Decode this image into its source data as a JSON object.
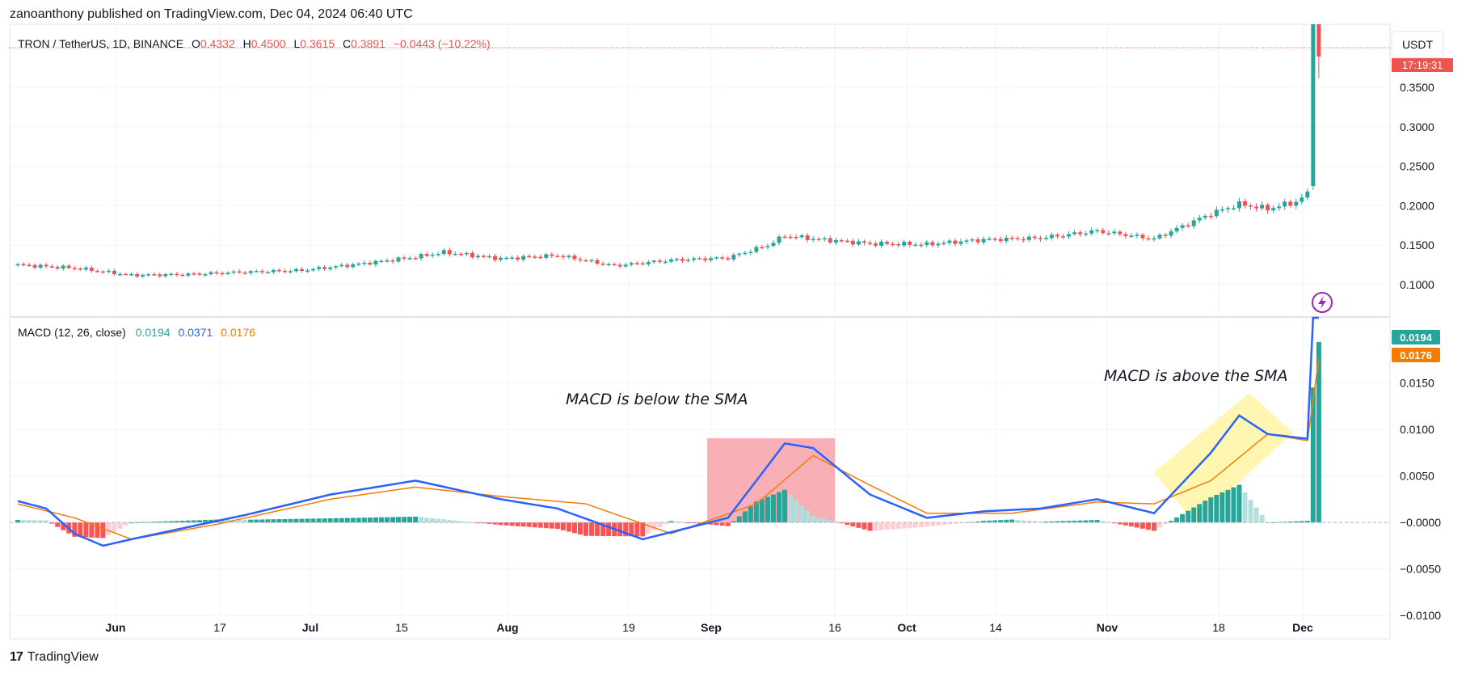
{
  "header": {
    "published": "zanoanthony published on TradingView.com, Dec 04, 2024 06:40 UTC"
  },
  "symbol_legend": {
    "name": "TRON / TetherUS, 1D, BINANCE",
    "o_label": "O",
    "o_value": "0.4332",
    "h_label": "H",
    "h_value": "0.4500",
    "l_label": "L",
    "l_value": "0.3615",
    "c_label": "C",
    "c_value": "0.3891",
    "change": "−0.0443 (−10.22%)"
  },
  "price_axis": {
    "currency": "USDT",
    "countdown": "17:19:31",
    "ticks": [
      "0.3500",
      "0.3000",
      "0.2500",
      "0.2000",
      "0.1500",
      "0.1000"
    ],
    "tick_values": [
      0.35,
      0.3,
      0.25,
      0.2,
      0.15,
      0.1
    ]
  },
  "macd_legend": {
    "name": "MACD (12, 26, close)",
    "hist": "0.0194",
    "macd": "0.0371",
    "signal": "0.0176"
  },
  "macd_axis": {
    "ticks": [
      "0.0150",
      "0.0100",
      "0.0050",
      "−0.0000",
      "−0.0050",
      "−0.0100"
    ],
    "tick_values": [
      0.015,
      0.01,
      0.005,
      0.0,
      -0.005,
      -0.01
    ],
    "hist_badge": "0.0194",
    "signal_badge": "0.0176"
  },
  "time_axis": {
    "labels": [
      "Jun",
      "17",
      "Jul",
      "15",
      "Aug",
      "19",
      "Sep",
      "16",
      "Oct",
      "14",
      "Nov",
      "18",
      "Dec"
    ],
    "bold": [
      "Jun",
      "Jul",
      "Aug",
      "Sep",
      "Oct",
      "Nov",
      "Dec"
    ]
  },
  "annotations": {
    "below": "MACD is below the SMA",
    "above": "MACD is above the SMA"
  },
  "footer": {
    "brand": "TradingView",
    "logo": "17"
  },
  "colors": {
    "up": "#26a69a",
    "down": "#ef5350",
    "macd": "#2962ff",
    "signal": "#f57c00",
    "hist_up_strong": "#26a69a",
    "hist_up_weak": "#b2dfdb",
    "hist_down_strong": "#ff5252",
    "hist_down_weak": "#ffcdd2",
    "highlight_red": "#f7a1a8",
    "highlight_yellow": "#fff59d"
  },
  "chart_data": {
    "type": "candlestick",
    "symbol": "TRXUSDT",
    "interval": "1D",
    "range": [
      "2024-05-19",
      "2024-12-04"
    ],
    "price_ylim": [
      0.06,
      0.43
    ],
    "price_scale": "linear",
    "close_path": [
      [
        0,
        0.125
      ],
      [
        10,
        0.121
      ],
      [
        20,
        0.112
      ],
      [
        30,
        0.113
      ],
      [
        40,
        0.116
      ],
      [
        50,
        0.118
      ],
      [
        60,
        0.126
      ],
      [
        70,
        0.135
      ],
      [
        75,
        0.141
      ],
      [
        85,
        0.133
      ],
      [
        95,
        0.137
      ],
      [
        105,
        0.124
      ],
      [
        115,
        0.131
      ],
      [
        125,
        0.134
      ],
      [
        132,
        0.15
      ],
      [
        135,
        0.162
      ],
      [
        140,
        0.158
      ],
      [
        150,
        0.152
      ],
      [
        160,
        0.151
      ],
      [
        170,
        0.157
      ],
      [
        180,
        0.159
      ],
      [
        190,
        0.168
      ],
      [
        200,
        0.158
      ],
      [
        210,
        0.19
      ],
      [
        215,
        0.202
      ],
      [
        220,
        0.196
      ],
      [
        225,
        0.205
      ],
      [
        228,
        0.22
      ],
      [
        229,
        0.39
      ]
    ],
    "macd_ylim": [
      -0.0125,
      0.022
    ],
    "macd_line": [
      [
        0,
        0.0023
      ],
      [
        5,
        0.0015
      ],
      [
        10,
        -0.0012
      ],
      [
        15,
        -0.0025
      ],
      [
        20,
        -0.0018
      ],
      [
        30,
        -0.0005
      ],
      [
        40,
        0.0008
      ],
      [
        55,
        0.003
      ],
      [
        70,
        0.0045
      ],
      [
        85,
        0.0025
      ],
      [
        95,
        0.0015
      ],
      [
        110,
        -0.0018
      ],
      [
        125,
        0.0005
      ],
      [
        135,
        0.0085
      ],
      [
        140,
        0.008
      ],
      [
        150,
        0.003
      ],
      [
        160,
        0.0005
      ],
      [
        170,
        0.0012
      ],
      [
        180,
        0.0015
      ],
      [
        190,
        0.0025
      ],
      [
        200,
        0.001
      ],
      [
        210,
        0.0075
      ],
      [
        215,
        0.0115
      ],
      [
        220,
        0.0095
      ],
      [
        227,
        0.009
      ],
      [
        229,
        0.0371
      ]
    ],
    "signal_line": [
      [
        0,
        0.002
      ],
      [
        10,
        0.0005
      ],
      [
        20,
        -0.0018
      ],
      [
        35,
        -0.0002
      ],
      [
        55,
        0.0025
      ],
      [
        70,
        0.0038
      ],
      [
        85,
        0.0028
      ],
      [
        100,
        0.002
      ],
      [
        115,
        -0.0012
      ],
      [
        130,
        0.002
      ],
      [
        140,
        0.0072
      ],
      [
        150,
        0.004
      ],
      [
        160,
        0.001
      ],
      [
        175,
        0.001
      ],
      [
        190,
        0.0022
      ],
      [
        200,
        0.002
      ],
      [
        210,
        0.0045
      ],
      [
        220,
        0.0095
      ],
      [
        227,
        0.0088
      ],
      [
        229,
        0.0176
      ]
    ],
    "histogram_latest": 0.0194
  }
}
